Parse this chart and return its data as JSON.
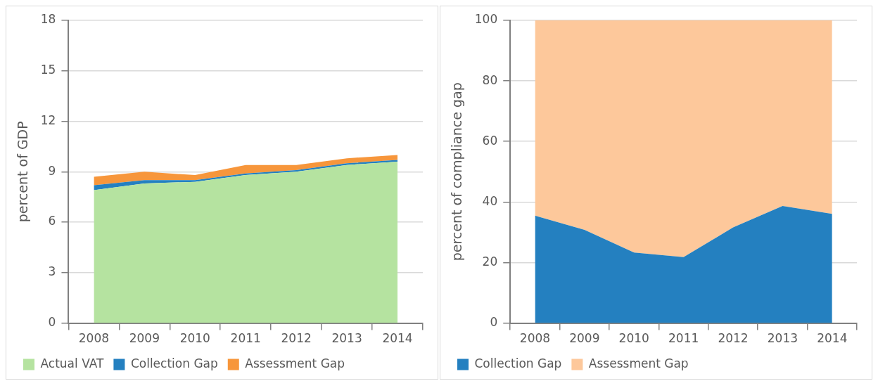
{
  "chart_data": [
    {
      "type": "area",
      "stacked": true,
      "ylabel": "percent of GDP",
      "categories": [
        "2008",
        "2009",
        "2010",
        "2011",
        "2012",
        "2013",
        "2014"
      ],
      "ylim": [
        0,
        18
      ],
      "yticks": [
        0,
        3,
        6,
        9,
        12,
        15,
        18
      ],
      "grid": "y",
      "legend": "bottom",
      "series": [
        {
          "name": "Actual VAT",
          "color": "#b5e3a0",
          "values": [
            7.9,
            8.3,
            8.4,
            8.8,
            9.0,
            9.4,
            9.6
          ]
        },
        {
          "name": "Collection Gap",
          "color": "#2480c0",
          "values": [
            0.3,
            0.2,
            0.1,
            0.1,
            0.1,
            0.1,
            0.1
          ]
        },
        {
          "name": "Assessment Gap",
          "color": "#f7963b",
          "values": [
            0.5,
            0.5,
            0.3,
            0.5,
            0.3,
            0.3,
            0.3
          ]
        }
      ]
    },
    {
      "type": "area",
      "stacked": true,
      "ylabel": "percent of compliance gap",
      "categories": [
        "2008",
        "2009",
        "2010",
        "2011",
        "2012",
        "2013",
        "2014"
      ],
      "ylim": [
        0,
        100
      ],
      "yticks": [
        0,
        20,
        40,
        60,
        80,
        100
      ],
      "grid": "y",
      "legend": "bottom",
      "series": [
        {
          "name": "Collection Gap",
          "color": "#2480c0",
          "values": [
            35.5,
            30.8,
            23.3,
            21.8,
            31.6,
            38.7,
            36.1
          ]
        },
        {
          "name": "Assessment Gap",
          "color": "#fdc89b",
          "values": [
            64.5,
            69.2,
            76.7,
            78.2,
            68.4,
            61.3,
            63.9
          ]
        }
      ]
    }
  ]
}
